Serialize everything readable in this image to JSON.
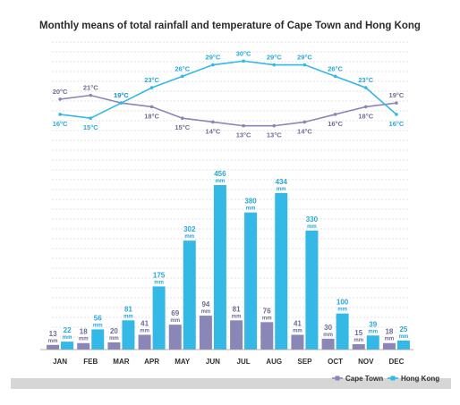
{
  "colors": {
    "cape_town": "#8b86b8",
    "hong_kong": "#34b8e6",
    "cape_town_label": "#6f6b95",
    "hong_kong_label": "#2aa7d8",
    "grid": "#c8c8c8",
    "footer": "#d6d6d6"
  },
  "chart_data": [
    {
      "type": "line",
      "title": "Monthly means of total rainfall and temperature of Cape Town and Hong Kong",
      "categories": [
        "JAN",
        "FEB",
        "MAR",
        "APR",
        "MAY",
        "JUN",
        "JUL",
        "AUG",
        "SEP",
        "OCT",
        "NOV",
        "DEC"
      ],
      "unit": "°C",
      "series": [
        {
          "name": "Cape Town",
          "values": [
            20,
            21,
            19,
            18,
            15,
            14,
            13,
            13,
            14,
            16,
            18,
            19
          ]
        },
        {
          "name": "Hong Kong",
          "values": [
            16,
            15,
            19,
            23,
            26,
            29,
            30,
            29,
            29,
            26,
            23,
            16
          ]
        }
      ],
      "ylim": [
        12,
        31
      ],
      "grid": true
    },
    {
      "type": "bar",
      "categories": [
        "JAN",
        "FEB",
        "MAR",
        "APR",
        "MAY",
        "JUN",
        "JUL",
        "AUG",
        "SEP",
        "OCT",
        "NOV",
        "DEC"
      ],
      "unit": "mm",
      "series": [
        {
          "name": "Cape Town",
          "values": [
            13,
            18,
            20,
            41,
            69,
            94,
            81,
            76,
            41,
            30,
            15,
            18
          ]
        },
        {
          "name": "Hong Kong",
          "values": [
            22,
            56,
            81,
            175,
            302,
            456,
            380,
            434,
            330,
            100,
            39,
            25
          ]
        }
      ],
      "ylim": [
        0,
        456
      ],
      "grid": true,
      "legend": "bottom-right"
    }
  ]
}
